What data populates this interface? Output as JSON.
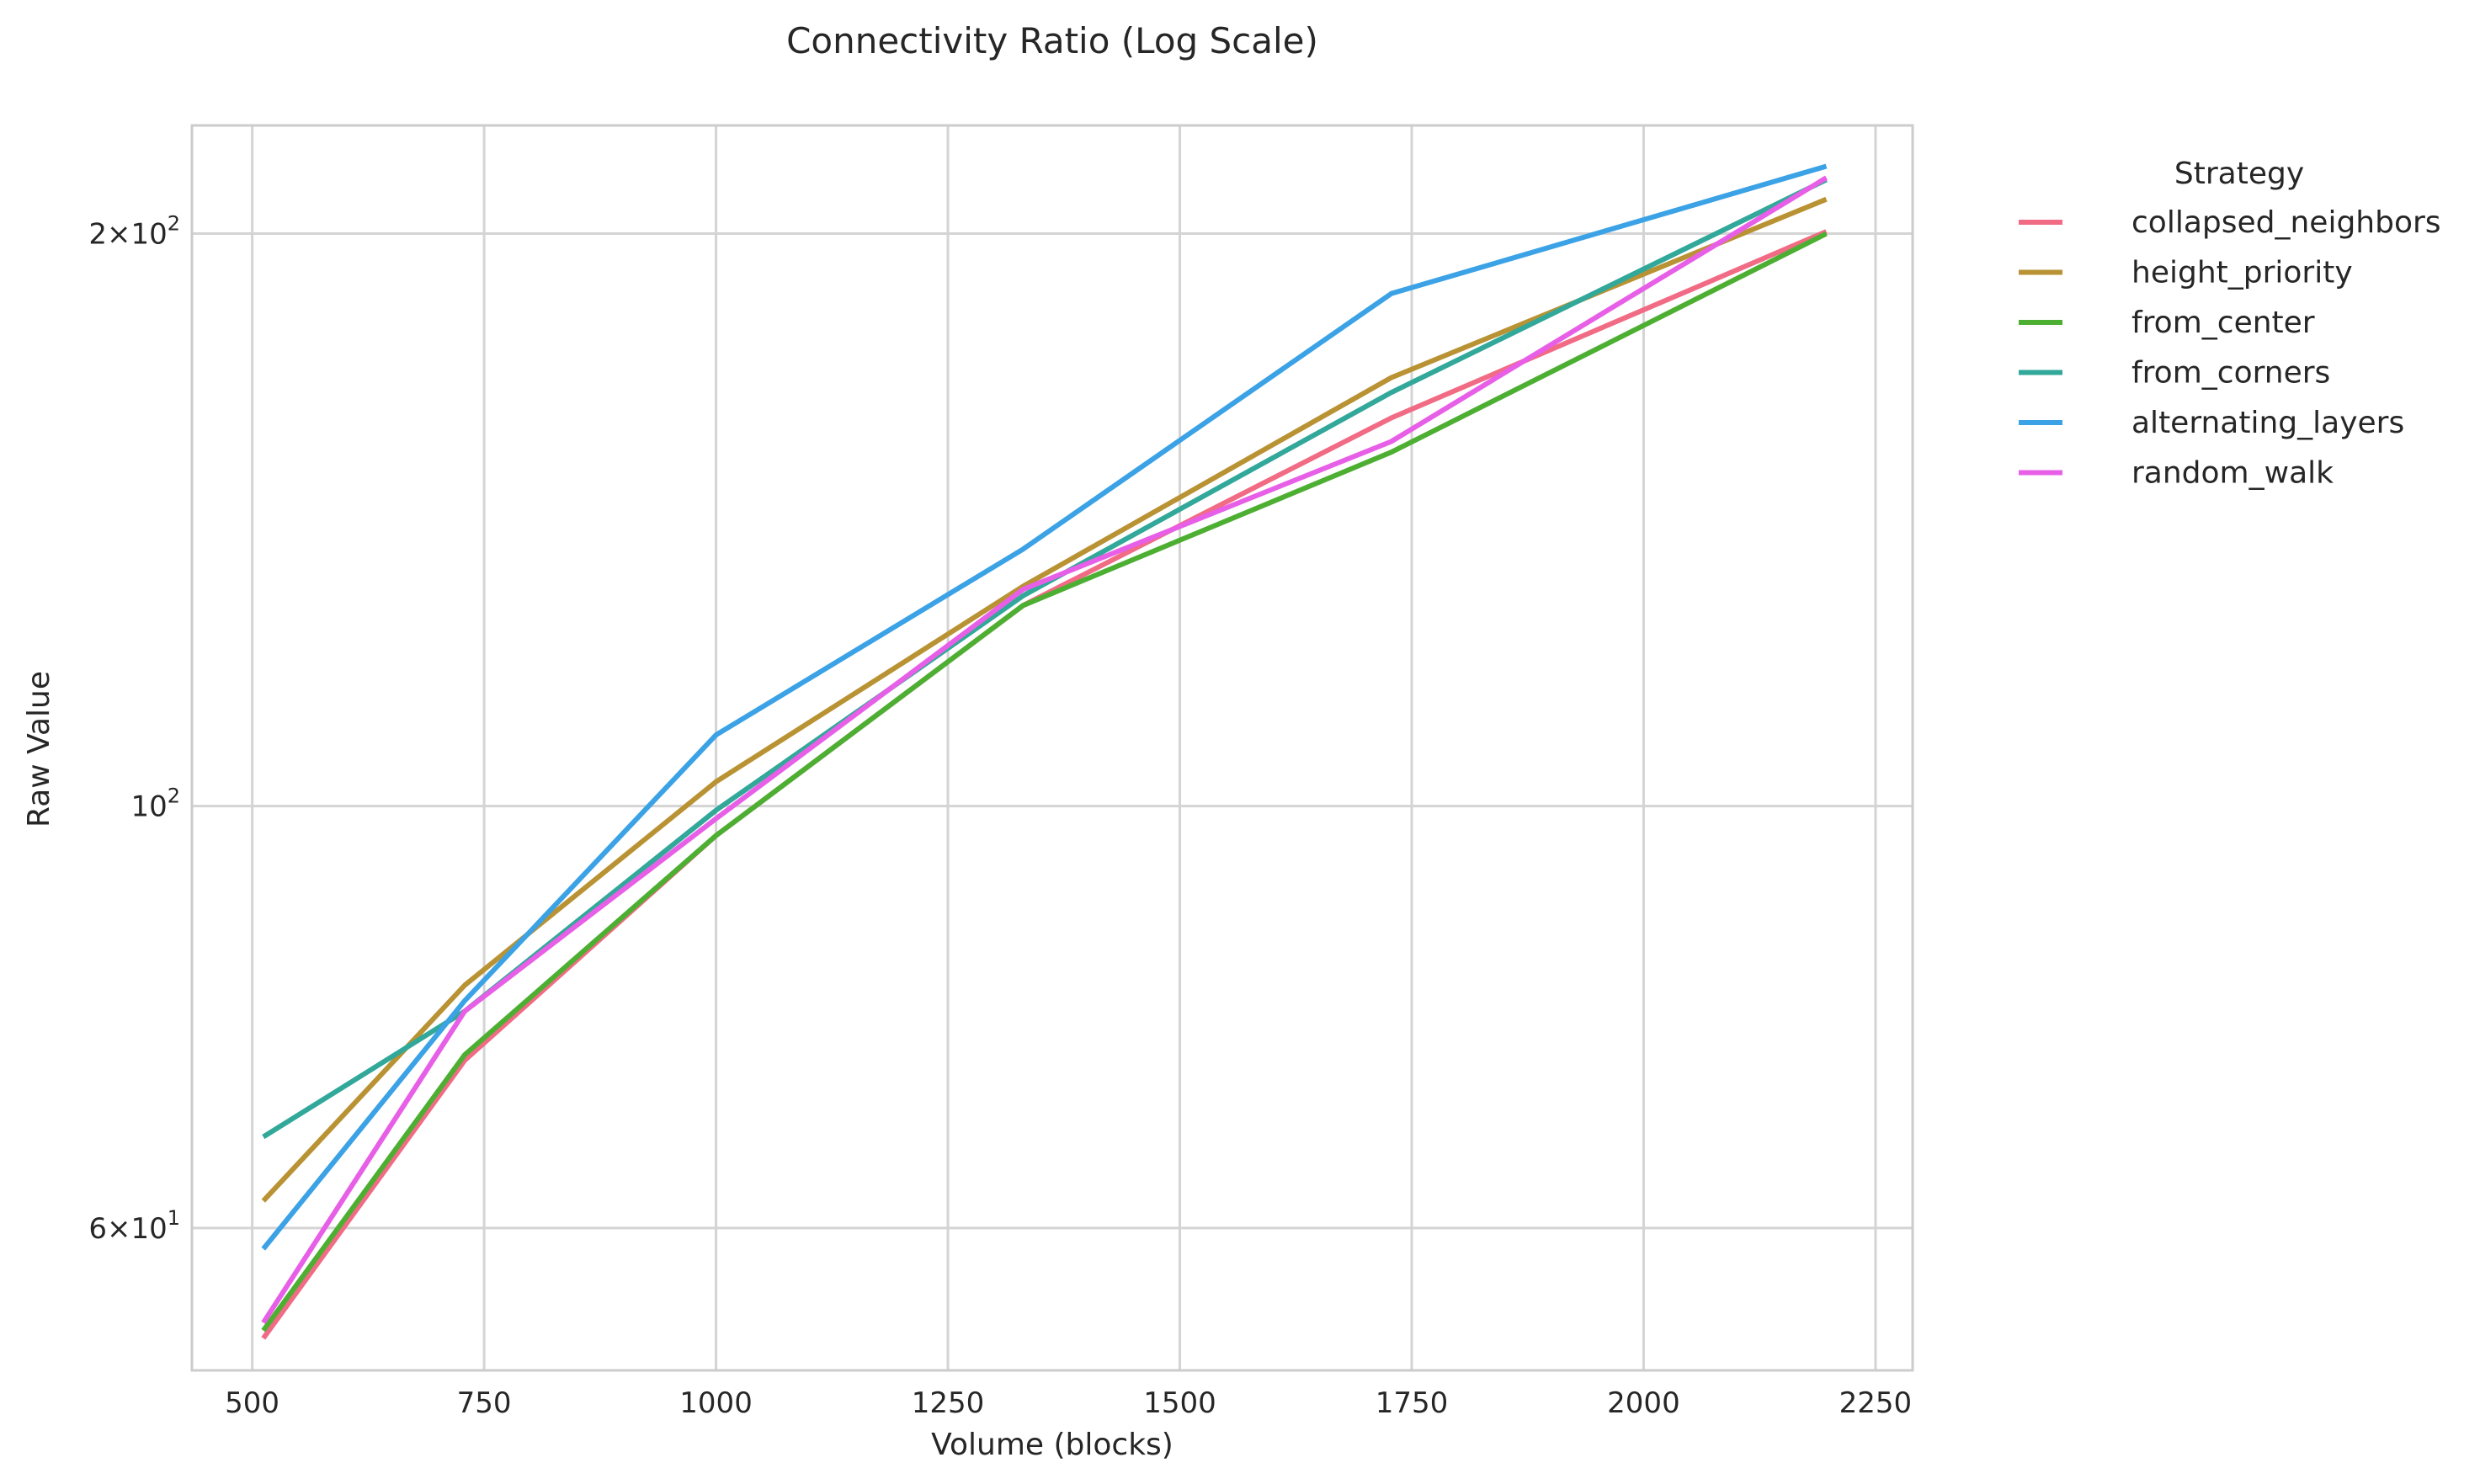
{
  "chart_data": {
    "type": "line",
    "title": "Connectivity Ratio (Log Scale)",
    "xlabel": "Volume (blocks)",
    "ylabel": "Raw Value",
    "yscale": "log",
    "xlim": [
      435,
      2290
    ],
    "ylim": [
      50.5,
      228
    ],
    "x_ticks": [
      500,
      750,
      1000,
      1250,
      1500,
      1750,
      2000,
      2250
    ],
    "x_tick_labels": [
      "500",
      "750",
      "1000",
      "1250",
      "1500",
      "1750",
      "2000",
      "2250"
    ],
    "y_ticks": [
      {
        "value": 60,
        "mantissa": "6",
        "exponent": "1"
      },
      {
        "value": 100,
        "mantissa": "",
        "exponent": "2"
      },
      {
        "value": 200,
        "mantissa": "2",
        "exponent": "2"
      }
    ],
    "y_tick_base": "10",
    "y_tick_times": "×",
    "grid": true,
    "legend": {
      "title": "Strategy",
      "placement": "outside-right"
    },
    "x": [
      512,
      729,
      1000,
      1331,
      1728,
      2197
    ],
    "series": [
      {
        "name": "collapsed_neighbors",
        "color": "#f16b85",
        "values": [
          52.5,
          73.5,
          96.5,
          127.5,
          160.0,
          200.5
        ]
      },
      {
        "name": "height_priority",
        "color": "#b99233",
        "values": [
          62.0,
          80.5,
          103.0,
          130.5,
          168.0,
          208.5
        ]
      },
      {
        "name": "from_center",
        "color": "#4daf32",
        "values": [
          53.0,
          74.0,
          96.5,
          127.5,
          153.5,
          200.0
        ]
      },
      {
        "name": "from_corners",
        "color": "#32a89a",
        "values": [
          67.0,
          78.0,
          99.5,
          129.0,
          165.0,
          213.5
        ]
      },
      {
        "name": "alternating_layers",
        "color": "#3ba2e6",
        "values": [
          58.5,
          79.0,
          109.0,
          136.5,
          186.0,
          217.0
        ]
      },
      {
        "name": "random_walk",
        "color": "#e85fe7",
        "values": [
          53.5,
          78.0,
          98.5,
          130.0,
          155.5,
          214.0
        ]
      }
    ]
  }
}
